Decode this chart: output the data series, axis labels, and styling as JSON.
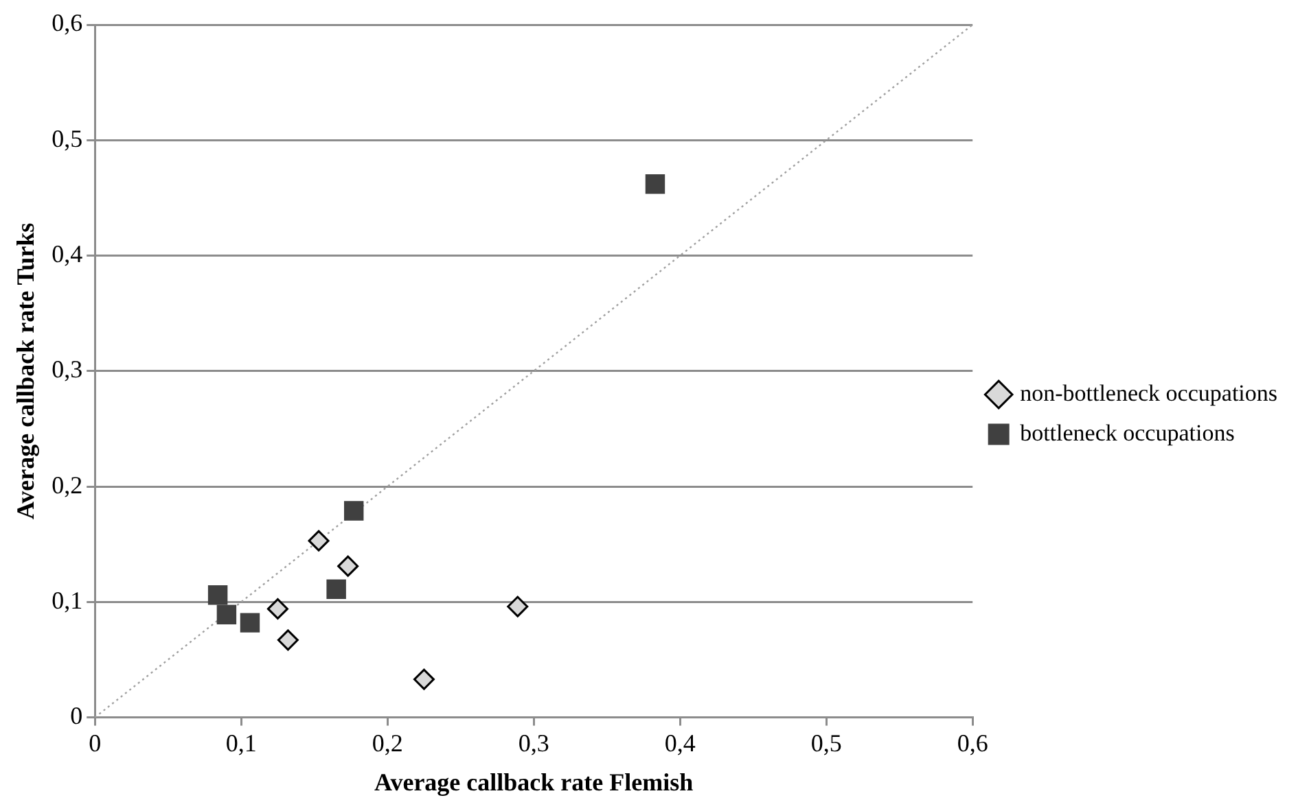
{
  "chart_data": {
    "type": "scatter",
    "xlabel": "Average callback rate Flemish",
    "ylabel": "Average callback rate Turks",
    "xlim": [
      0,
      0.6
    ],
    "xticks": [
      {
        "value": 0,
        "label": "0"
      },
      {
        "value": 0.1,
        "label": "0,1"
      },
      {
        "value": 0.2,
        "label": "0,2"
      },
      {
        "value": 0.3,
        "label": "0,3"
      },
      {
        "value": 0.4,
        "label": "0,4"
      },
      {
        "value": 0.5,
        "label": "0,5"
      },
      {
        "value": 0.6,
        "label": "0,6"
      }
    ],
    "ylim": [
      0,
      0.6
    ],
    "yticks": [
      {
        "value": 0,
        "label": "0"
      },
      {
        "value": 0.1,
        "label": "0,1"
      },
      {
        "value": 0.2,
        "label": "0,2"
      },
      {
        "value": 0.3,
        "label": "0,3"
      },
      {
        "value": 0.4,
        "label": "0,4"
      },
      {
        "value": 0.5,
        "label": "0,5"
      },
      {
        "value": 0.6,
        "label": "0,6"
      }
    ],
    "grid": "y",
    "legend": "right",
    "series": [
      {
        "name": "non-bottleneck occupations",
        "color": "#d9d9d9",
        "marker": "diamond",
        "x": [
          0.153,
          0.173,
          0.125,
          0.132,
          0.225,
          0.289
        ],
        "values": [
          0.153,
          0.131,
          0.094,
          0.067,
          0.033,
          0.096
        ]
      },
      {
        "name": "bottleneck occupations",
        "color": "#404040",
        "marker": "square",
        "x": [
          0.177,
          0.084,
          0.09,
          0.106,
          0.165,
          0.383
        ],
        "values": [
          0.179,
          0.106,
          0.089,
          0.082,
          0.111,
          0.462
        ]
      },
      {
        "type": "line",
        "color": "#a0a0a0",
        "line_style": "dotted",
        "marker": "none",
        "x": [
          0,
          0.6
        ],
        "values": [
          0,
          0.6
        ]
      }
    ]
  }
}
